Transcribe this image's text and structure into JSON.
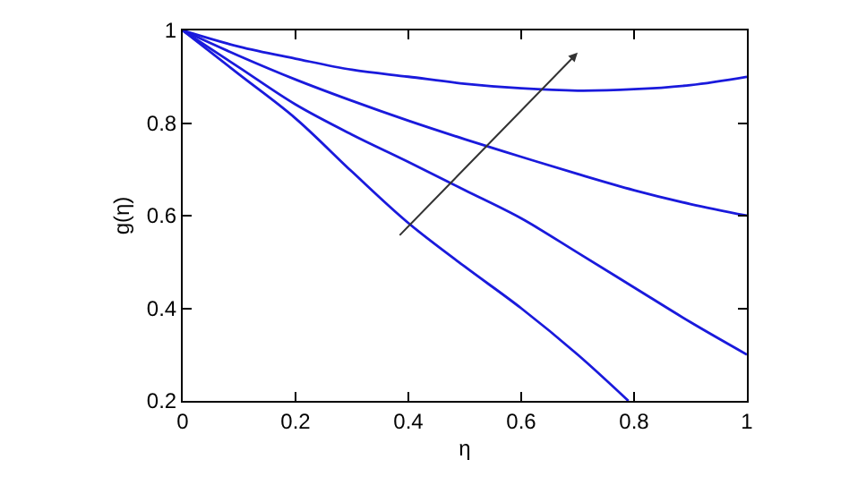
{
  "chart_data": {
    "type": "line",
    "xlabel": "η",
    "ylabel": "g(η)",
    "xlim": [
      0,
      1
    ],
    "ylim": [
      0.2,
      1
    ],
    "xticks": [
      0,
      0.2,
      0.4,
      0.6,
      0.8,
      1
    ],
    "yticks": [
      0.2,
      0.4,
      0.6,
      0.8,
      1
    ],
    "marker": "none",
    "line_style": "solid",
    "series": [
      {
        "color": "#1a1adc",
        "x": [
          0,
          0.1,
          0.2,
          0.3,
          0.4,
          0.5,
          0.6,
          0.7,
          0.8,
          0.9,
          1
        ],
        "values": [
          1,
          0.965,
          0.939,
          0.915,
          0.9,
          0.885,
          0.875,
          0.87,
          0.873,
          0.882,
          0.9
        ]
      },
      {
        "color": "#1a1adc",
        "x": [
          0,
          0.1,
          0.2,
          0.3,
          0.4,
          0.5,
          0.6,
          0.7,
          0.8,
          0.9,
          1
        ],
        "values": [
          1,
          0.945,
          0.894,
          0.848,
          0.805,
          0.765,
          0.727,
          0.69,
          0.655,
          0.625,
          0.6
        ]
      },
      {
        "color": "#1a1adc",
        "x": [
          0,
          0.1,
          0.2,
          0.3,
          0.4,
          0.5,
          0.6,
          0.7,
          0.8,
          0.9,
          1
        ],
        "values": [
          1,
          0.92,
          0.84,
          0.775,
          0.716,
          0.655,
          0.594,
          0.52,
          0.445,
          0.37,
          0.3
        ]
      },
      {
        "color": "#1a1adc",
        "x": [
          0,
          0.1,
          0.2,
          0.3,
          0.4,
          0.5,
          0.6,
          0.7,
          0.79
        ],
        "values": [
          1,
          0.905,
          0.81,
          0.695,
          0.584,
          0.49,
          0.4,
          0.3,
          0.2
        ]
      }
    ]
  }
}
